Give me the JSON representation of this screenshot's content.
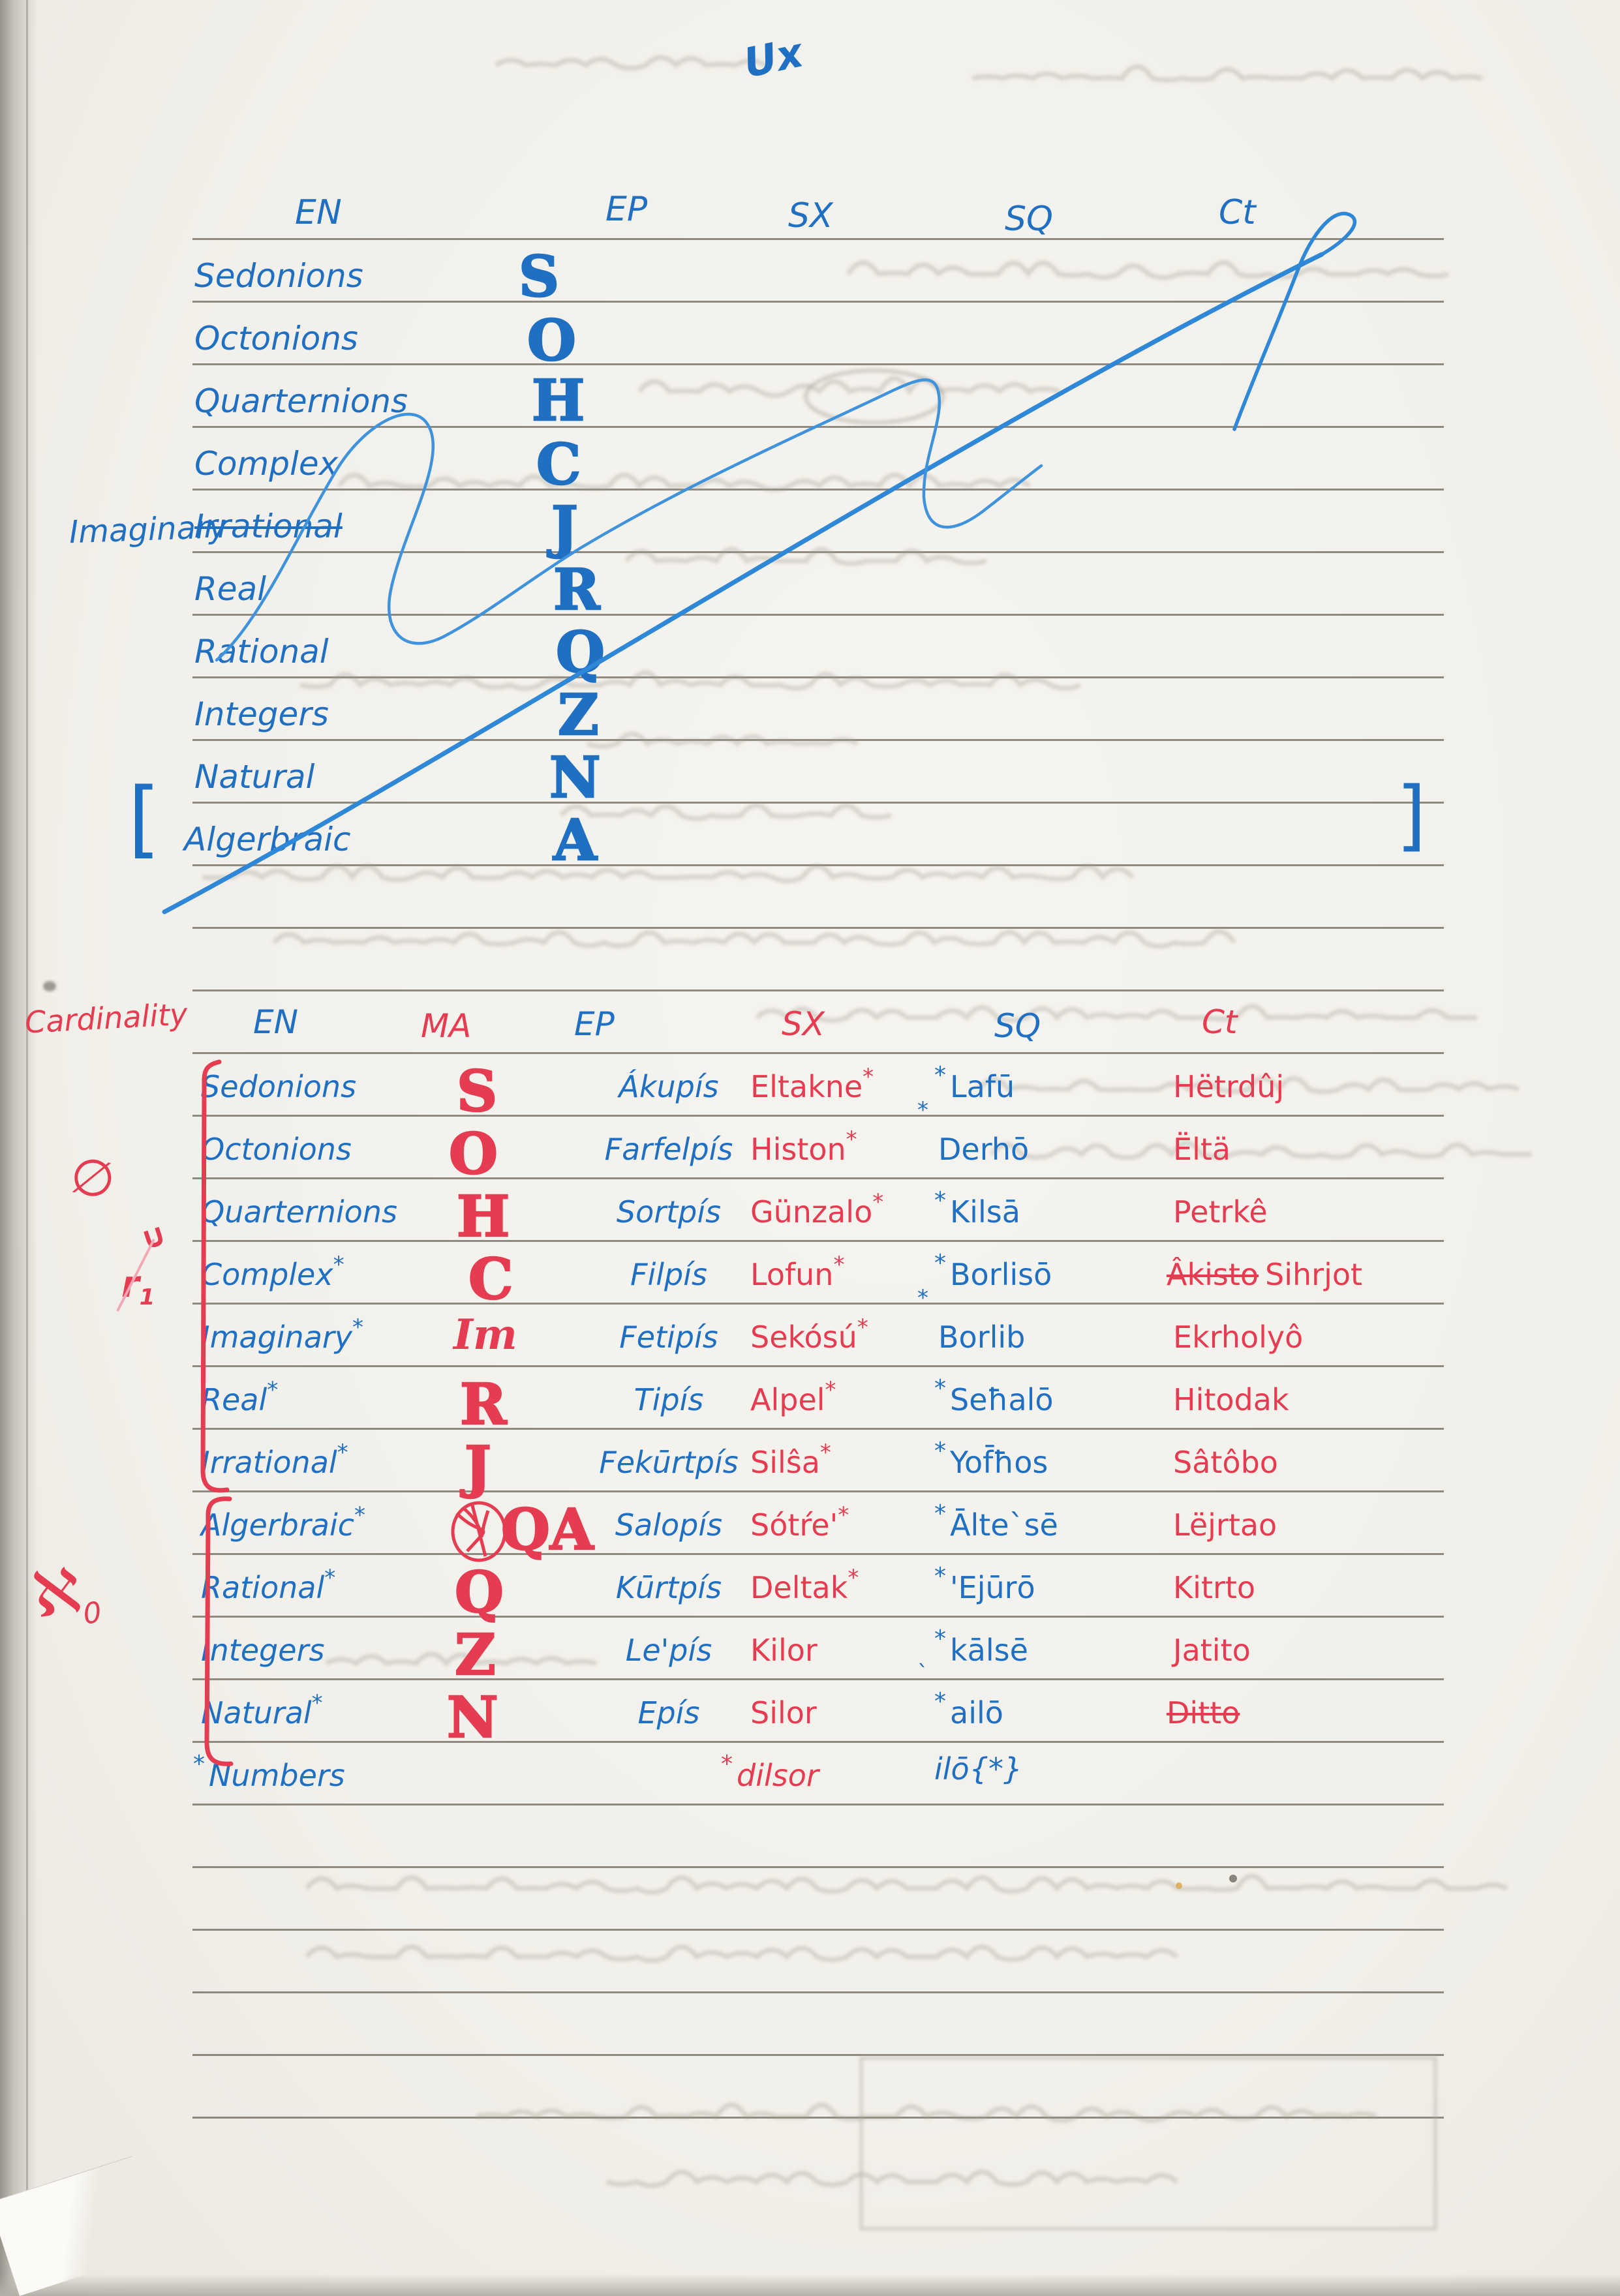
{
  "page_note": "Ux",
  "table1": {
    "headers": [
      "EN",
      "EP",
      "SX",
      "SQ",
      "Ct"
    ],
    "bracket_open": "[",
    "bracket_close": "]",
    "margin_note": "Imaginary",
    "rows": [
      {
        "en": "Sedonions",
        "sym": "S"
      },
      {
        "en": "Octonions",
        "sym": "O"
      },
      {
        "en": "Quarternions",
        "sym": "H"
      },
      {
        "en": "Complex",
        "sym": "C"
      },
      {
        "en": "Irrational",
        "sym": "J"
      },
      {
        "en": "Real",
        "sym": "R"
      },
      {
        "en": "Rational",
        "sym": "Q"
      },
      {
        "en": "Integers",
        "sym": "Z"
      },
      {
        "en": "Natural",
        "sym": "N"
      },
      {
        "en": "Algerbraic",
        "sym": "A"
      }
    ]
  },
  "table2": {
    "margin_title": "Cardinality",
    "margin_symbols": {
      "empty_set": "∅",
      "union": "∪",
      "r1": "r",
      "r1_sub": "1",
      "aleph": "ℵ",
      "aleph_sub": "0"
    },
    "headers": [
      "EN",
      "MA",
      "EP",
      "SX",
      "SQ",
      "Ct"
    ],
    "rows": [
      {
        "en": "Sedonions",
        "ma": "S",
        "ep": "Ákupís",
        "sx": "Eltakne",
        "sx_star": "*",
        "sq_star": "*",
        "sq": "Lafū",
        "sq_below": "*",
        "ct": "Hëtrdûj"
      },
      {
        "en": "Octonions",
        "ma": "O",
        "ep": "Farfelpís",
        "sx": "Histon",
        "sx_star": "*",
        "sq": "Derhō",
        "ct": "Ëltä"
      },
      {
        "en": "Quarternions",
        "ma": "H",
        "ep": "Sortpís",
        "sx": "Günzalo",
        "sx_star": "*",
        "sq_star": "*",
        "sq": "Kilsā",
        "ct": "Petrkê"
      },
      {
        "en": "Complex",
        "en_star": "*",
        "ma": "C",
        "ep": "Filpís",
        "sx": "Lofun",
        "sx_star": "*",
        "sq_star": "*",
        "sq": "Borlisō",
        "sq_below": "*",
        "ct_struck": "Âkisto",
        "ct": "Sihrjot"
      },
      {
        "en": "Imaginary",
        "en_star": "*",
        "ma": "Im",
        "ep": "Fetipís",
        "sx": "Sekósú",
        "sx_star": "*",
        "sq": "Borlib",
        "ct": "Ekrholyô"
      },
      {
        "en": "Real",
        "en_star": "*",
        "ma": "R",
        "ep": "Tipís",
        "sx": "Alpel",
        "sx_star": "*",
        "sq_star": "*",
        "sq": "Seħalō",
        "ct": "Hitodak"
      },
      {
        "en": "Irrational",
        "en_star": "*",
        "ma": "J",
        "ep": "Fekūrtpís",
        "sx": "Silŝa",
        "sx_star": "*",
        "sq_star": "*",
        "sq": "Yof̄ħos",
        "ct": "Sâtôbo"
      },
      {
        "en": "Algerbraic",
        "en_star": "*",
        "ma": "A",
        "ma_scribbled": "Q",
        "ep": "Salopís",
        "sx": "Sótŕe'",
        "sx_star": "*",
        "sq_star": "*",
        "sq": "Ālte`sē",
        "ct": "Lëjrtao"
      },
      {
        "en": "Rational",
        "en_star": "*",
        "ma": "Q",
        "ep": "Kūrtpís",
        "sx": "Deltak",
        "sx_star": "*",
        "sq_star": "*",
        "sq": "'Ejūrō",
        "ct": "Kitrto"
      },
      {
        "en": "Integers",
        "ma": "Z",
        "ep": "Le'pís",
        "sx": "Kilor",
        "sq_star": "*",
        "sq": "kālsē",
        "sq_below": "`",
        "ct": "Jatito"
      },
      {
        "en": "Natural",
        "en_star": "*",
        "ma": "N",
        "ep": "Epís",
        "sx": "Silor",
        "sq_star": "*",
        "sq": "ailō",
        "ct_struck": "Ditto"
      }
    ],
    "footnote": {
      "en_star": "*",
      "en": "Numbers",
      "sx_star": "*",
      "sx": "dilsor",
      "sq": "ilō{*}"
    }
  }
}
